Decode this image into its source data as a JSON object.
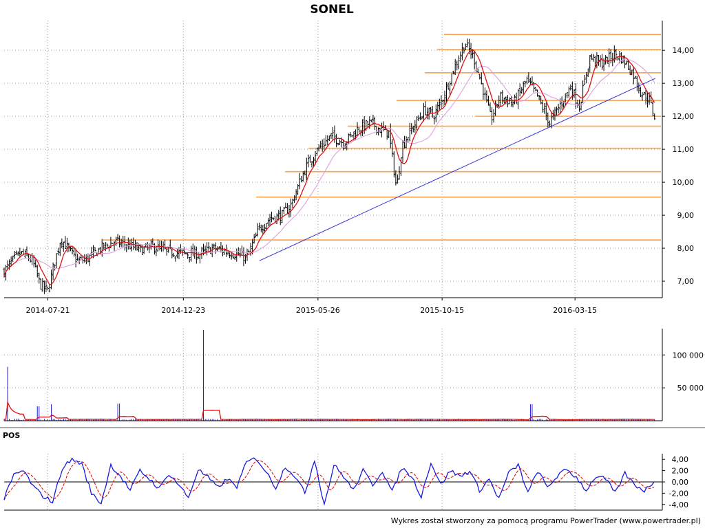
{
  "title": "SONEL",
  "footer": "Wykres został stworzony za pomocą programu PowerTrader (www.powertrader.pl)",
  "colors": {
    "candles": "#000000",
    "sma_fast": "#dd1111",
    "sma_slow": "#dda8e0",
    "levels": "#ffa14a",
    "trendline": "#3333dd",
    "volume": "#1a1adc",
    "volume_avg": "#dd1111",
    "pos": "#1a1adc",
    "pos_signal": "#dd1111"
  },
  "chart_data": [
    {
      "type": "candlestick",
      "name": "price",
      "x_ticks": [
        "2014-07-21",
        "2014-12-23",
        "2015-05-26",
        "2015-10-15",
        "2016-03-15"
      ],
      "x_range": [
        "2014-06-01",
        "2016-06-15"
      ],
      "y_ticks": [
        "7,00",
        "8,00",
        "9,00",
        "10,00",
        "11,00",
        "12,00",
        "13,00",
        "14,00"
      ],
      "ylim": [
        6.5,
        14.9
      ],
      "grid": true,
      "close_series": [
        [
          "2014-06-01",
          7.3
        ],
        [
          "2014-06-10",
          7.6
        ],
        [
          "2014-06-20",
          7.85
        ],
        [
          "2014-06-30",
          7.7
        ],
        [
          "2014-07-05",
          7.5
        ],
        [
          "2014-07-12",
          6.9
        ],
        [
          "2014-07-21",
          6.7
        ],
        [
          "2014-07-28",
          7.5
        ],
        [
          "2014-08-05",
          8.3
        ],
        [
          "2014-08-15",
          7.9
        ],
        [
          "2014-08-25",
          7.6
        ],
        [
          "2014-09-05",
          7.7
        ],
        [
          "2014-09-20",
          8.0
        ],
        [
          "2014-10-05",
          8.2
        ],
        [
          "2014-10-20",
          8.1
        ],
        [
          "2014-11-05",
          7.95
        ],
        [
          "2014-11-20",
          8.05
        ],
        [
          "2014-12-05",
          7.9
        ],
        [
          "2014-12-23",
          7.85
        ],
        [
          "2015-01-10",
          7.8
        ],
        [
          "2015-01-25",
          8.0
        ],
        [
          "2015-02-10",
          7.9
        ],
        [
          "2015-02-25",
          7.8
        ],
        [
          "2015-03-05",
          7.7
        ],
        [
          "2015-03-12",
          8.1
        ],
        [
          "2015-03-20",
          8.6
        ],
        [
          "2015-04-01",
          8.9
        ],
        [
          "2015-04-15",
          9.0
        ],
        [
          "2015-04-25",
          9.3
        ],
        [
          "2015-05-05",
          10.0
        ],
        [
          "2015-05-15",
          10.6
        ],
        [
          "2015-05-26",
          11.0
        ],
        [
          "2015-06-10",
          11.4
        ],
        [
          "2015-06-25",
          11.2
        ],
        [
          "2015-07-10",
          11.6
        ],
        [
          "2015-07-25",
          11.8
        ],
        [
          "2015-08-05",
          11.6
        ],
        [
          "2015-08-15",
          11.5
        ],
        [
          "2015-08-24",
          9.8
        ],
        [
          "2015-08-30",
          11.1
        ],
        [
          "2015-09-10",
          11.6
        ],
        [
          "2015-09-25",
          12.2
        ],
        [
          "2015-10-05",
          12.0
        ],
        [
          "2015-10-15",
          12.5
        ],
        [
          "2015-10-28",
          13.4
        ],
        [
          "2015-11-10",
          14.2
        ],
        [
          "2015-11-20",
          13.8
        ],
        [
          "2015-12-01",
          12.8
        ],
        [
          "2015-12-10",
          11.9
        ],
        [
          "2015-12-20",
          12.6
        ],
        [
          "2016-01-05",
          12.4
        ],
        [
          "2016-01-20",
          13.1
        ],
        [
          "2016-02-01",
          12.6
        ],
        [
          "2016-02-15",
          11.8
        ],
        [
          "2016-02-28",
          12.4
        ],
        [
          "2016-03-10",
          12.9
        ],
        [
          "2016-03-20",
          12.3
        ],
        [
          "2016-04-01",
          13.8
        ],
        [
          "2016-04-15",
          13.6
        ],
        [
          "2016-04-30",
          13.9
        ],
        [
          "2016-05-10",
          13.7
        ],
        [
          "2016-05-20",
          13.3
        ],
        [
          "2016-05-30",
          12.7
        ],
        [
          "2016-06-08",
          12.5
        ],
        [
          "2016-06-15",
          11.9
        ]
      ],
      "overlays": [
        {
          "kind": "horizontal_levels",
          "values": [
            8.25,
            9.55,
            10.32,
            11.03,
            11.7,
            12.0,
            12.48,
            13.32,
            14.02,
            14.48
          ]
        },
        {
          "kind": "trendline",
          "from": [
            "2015-03-20",
            7.62
          ],
          "to": [
            "2016-06-15",
            13.15
          ]
        },
        {
          "kind": "moving_average",
          "period": "fast"
        },
        {
          "kind": "moving_average",
          "period": "slow"
        }
      ]
    },
    {
      "type": "bar",
      "name": "volume",
      "y_ticks": [
        "50 000",
        "100 000"
      ],
      "ylim": [
        0,
        140000
      ],
      "spikes": [
        [
          "2014-06-05",
          82000
        ],
        [
          "2014-07-10",
          22000
        ],
        [
          "2014-07-25",
          25000
        ],
        [
          "2014-10-10",
          26000
        ],
        [
          "2015-01-15",
          138000
        ],
        [
          "2016-01-25",
          25000
        ]
      ],
      "overlays": [
        {
          "kind": "moving_average"
        }
      ]
    },
    {
      "type": "line",
      "name": "POS",
      "label": "POS",
      "y_ticks": [
        "4,00",
        "2,00",
        "0,00",
        "-2,00",
        "-4,00"
      ],
      "ylim": [
        -5,
        5
      ],
      "series": [
        {
          "values": [
            -3.0,
            1.2,
            2.0,
            -0.8,
            -2.5,
            -3.5,
            2.5,
            4.0,
            3.2,
            -2.0,
            -3.8,
            3.0,
            1.0,
            -1.5,
            2.0,
            0.5,
            -1.2,
            1.5,
            -0.5,
            -2.8,
            2.2,
            0.8,
            -1.0,
            0.5,
            -0.8,
            3.5,
            4.2,
            1.8,
            -1.0,
            2.8,
            1.0,
            -2.0,
            4.0,
            -4.0,
            3.0,
            1.0,
            -1.5,
            2.0,
            -0.5,
            2.0,
            -1.8,
            2.5,
            1.0,
            -2.5,
            3.5,
            -0.5,
            2.0,
            1.0,
            2.0,
            -1.5,
            0.5,
            -3.0,
            1.5,
            3.0,
            -2.0,
            2.0,
            -1.0,
            1.0,
            2.2,
            0.8,
            -1.5,
            1.0,
            0.5,
            -2.0,
            1.5,
            -0.5,
            -1.5,
            0.0
          ]
        },
        {
          "values": "signal"
        }
      ]
    }
  ]
}
